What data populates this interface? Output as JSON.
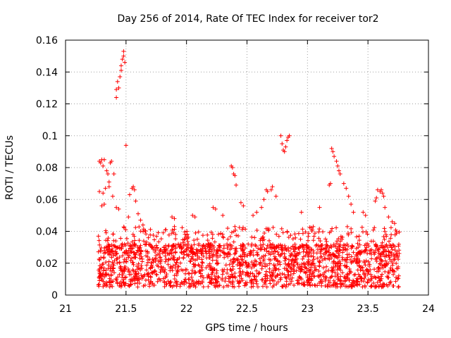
{
  "chart_data": {
    "type": "scatter",
    "title": "Day 256 of 2014, Rate Of TEC Index for receiver tor2",
    "xlabel": "GPS time / hours",
    "ylabel": "ROTI / TECUs",
    "xlim": [
      21,
      24
    ],
    "ylim": [
      0,
      0.16
    ],
    "xticks": [
      "21",
      "21.5",
      "22",
      "22.5",
      "23",
      "23.5",
      "24"
    ],
    "yticks": [
      "0",
      "0.02",
      "0.04",
      "0.06",
      "0.08",
      "0.1",
      "0.12",
      "0.14",
      "0.16"
    ],
    "grid": true,
    "marker": "+",
    "series": [
      {
        "name": "ROTI",
        "color": "#ff0000",
        "points": [
          [
            21.42,
            0.124
          ],
          [
            21.42,
            0.129
          ],
          [
            21.43,
            0.134
          ],
          [
            21.44,
            0.13
          ],
          [
            21.45,
            0.137
          ],
          [
            21.46,
            0.141
          ],
          [
            21.46,
            0.144
          ],
          [
            21.47,
            0.148
          ],
          [
            21.48,
            0.15
          ],
          [
            21.48,
            0.153
          ],
          [
            21.49,
            0.146
          ],
          [
            21.5,
            0.094
          ],
          [
            21.28,
            0.084
          ],
          [
            21.29,
            0.083
          ],
          [
            21.3,
            0.085
          ],
          [
            21.31,
            0.081
          ],
          [
            21.32,
            0.085
          ],
          [
            21.34,
            0.078
          ],
          [
            21.35,
            0.076
          ],
          [
            21.36,
            0.071
          ],
          [
            21.37,
            0.083
          ],
          [
            21.38,
            0.084
          ],
          [
            21.4,
            0.076
          ],
          [
            21.28,
            0.065
          ],
          [
            21.31,
            0.064
          ],
          [
            21.33,
            0.067
          ],
          [
            21.36,
            0.068
          ],
          [
            21.39,
            0.062
          ],
          [
            21.3,
            0.056
          ],
          [
            21.32,
            0.057
          ],
          [
            21.42,
            0.055
          ],
          [
            21.44,
            0.054
          ],
          [
            21.55,
            0.067
          ],
          [
            21.56,
            0.068
          ],
          [
            21.57,
            0.066
          ],
          [
            21.53,
            0.063
          ],
          [
            21.58,
            0.059
          ],
          [
            21.6,
            0.051
          ],
          [
            21.62,
            0.047
          ],
          [
            22.37,
            0.081
          ],
          [
            22.38,
            0.08
          ],
          [
            22.39,
            0.076
          ],
          [
            22.4,
            0.075
          ],
          [
            22.41,
            0.069
          ],
          [
            22.45,
            0.058
          ],
          [
            22.47,
            0.056
          ],
          [
            22.4,
            0.043
          ],
          [
            22.78,
            0.1
          ],
          [
            22.79,
            0.095
          ],
          [
            22.8,
            0.091
          ],
          [
            22.81,
            0.09
          ],
          [
            22.82,
            0.093
          ],
          [
            22.83,
            0.097
          ],
          [
            22.84,
            0.099
          ],
          [
            22.85,
            0.1
          ],
          [
            22.74,
            0.062
          ],
          [
            22.66,
            0.066
          ],
          [
            22.67,
            0.065
          ],
          [
            22.7,
            0.066
          ],
          [
            22.71,
            0.068
          ],
          [
            22.64,
            0.06
          ],
          [
            23.2,
            0.092
          ],
          [
            23.21,
            0.09
          ],
          [
            23.22,
            0.087
          ],
          [
            23.24,
            0.084
          ],
          [
            23.25,
            0.081
          ],
          [
            23.26,
            0.078
          ],
          [
            23.27,
            0.076
          ],
          [
            23.19,
            0.07
          ],
          [
            23.18,
            0.069
          ],
          [
            23.3,
            0.07
          ],
          [
            23.32,
            0.067
          ],
          [
            23.34,
            0.062
          ],
          [
            23.36,
            0.057
          ],
          [
            23.38,
            0.052
          ],
          [
            23.58,
            0.066
          ],
          [
            23.6,
            0.065
          ],
          [
            23.61,
            0.066
          ],
          [
            23.62,
            0.064
          ],
          [
            23.63,
            0.062
          ],
          [
            23.57,
            0.061
          ],
          [
            23.56,
            0.059
          ],
          [
            23.64,
            0.055
          ],
          [
            23.67,
            0.049
          ],
          [
            23.7,
            0.046
          ],
          [
            23.72,
            0.045
          ],
          [
            21.52,
            0.049
          ],
          [
            21.64,
            0.044
          ],
          [
            21.88,
            0.049
          ],
          [
            21.9,
            0.048
          ],
          [
            22.05,
            0.05
          ],
          [
            22.07,
            0.049
          ],
          [
            22.22,
            0.055
          ],
          [
            22.24,
            0.054
          ],
          [
            22.3,
            0.05
          ],
          [
            22.55,
            0.05
          ],
          [
            22.58,
            0.052
          ],
          [
            22.62,
            0.055
          ],
          [
            22.95,
            0.052
          ],
          [
            23.1,
            0.055
          ],
          [
            23.46,
            0.052
          ],
          [
            23.48,
            0.05
          ]
        ],
        "dense_band": {
          "x_range": [
            21.27,
            23.76
          ],
          "y_range": [
            0.003,
            0.045
          ],
          "count": 1900,
          "note": "dense cloud of ROTI samples, most between 0.005 and 0.03 TECU"
        }
      }
    ]
  }
}
